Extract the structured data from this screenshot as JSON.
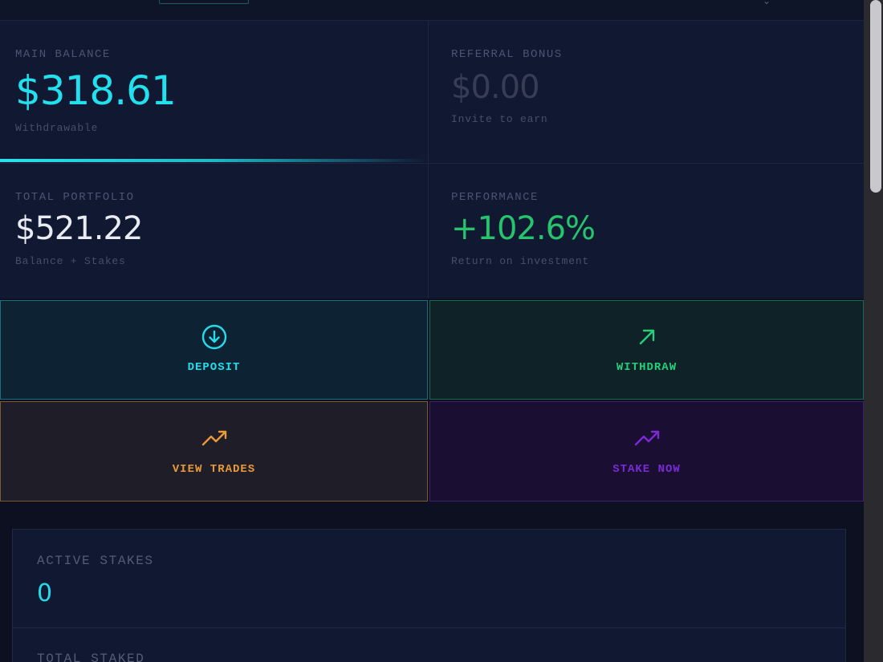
{
  "stats": {
    "main_balance": {
      "label": "MAIN BALANCE",
      "value": "$318.61",
      "sub": "Withdrawable"
    },
    "referral_bonus": {
      "label": "REFERRAL BONUS",
      "value": "$0.00",
      "sub": "Invite to earn"
    },
    "total_portfolio": {
      "label": "TOTAL PORTFOLIO",
      "value": "$521.22",
      "sub": "Balance + Stakes"
    },
    "performance": {
      "label": "PERFORMANCE",
      "value": "+102.6%",
      "sub": "Return on investment"
    }
  },
  "actions": {
    "deposit": {
      "label": "DEPOSIT",
      "icon": "arrow-down-circle-icon",
      "color": "#24dcea"
    },
    "withdraw": {
      "label": "WITHDRAW",
      "icon": "arrow-up-right-icon",
      "color": "#24d07a"
    },
    "view_trades": {
      "label": "VIEW TRADES",
      "icon": "trending-up-icon",
      "color": "#e89a3a"
    },
    "stake_now": {
      "label": "STAKE NOW",
      "icon": "trending-up-icon",
      "color": "#7a2ad6"
    }
  },
  "stakes": {
    "active_label": "ACTIVE STAKES",
    "active_value": "0",
    "total_label": "TOTAL STAKED"
  },
  "colors": {
    "accent_cyan": "#22e0ee",
    "positive_green": "#25c46d",
    "background": "#0c1020",
    "card": "#111832"
  }
}
